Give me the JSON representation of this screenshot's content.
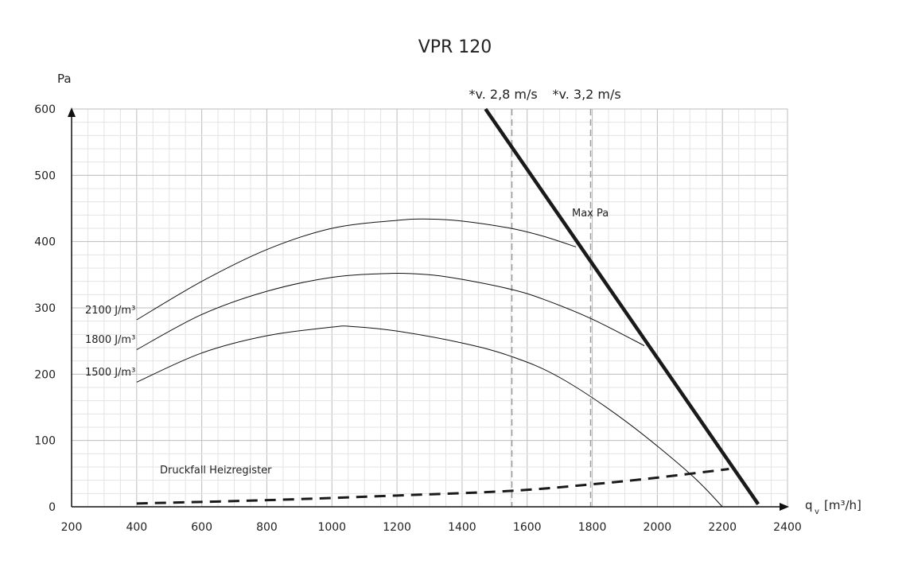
{
  "chart_data": {
    "type": "line",
    "title": "VPR 120",
    "ylabel": "Pa",
    "xlabel_main": "q",
    "xlabel_sub": "v",
    "xlabel_unit": "[m³/h]",
    "xlim": [
      200,
      2400
    ],
    "ylim": [
      0,
      600
    ],
    "x_ticks": [
      200,
      400,
      600,
      800,
      1000,
      1200,
      1400,
      1600,
      1800,
      2000,
      2200,
      2400
    ],
    "y_ticks": [
      0,
      100,
      200,
      300,
      400,
      500,
      600
    ],
    "grid": true,
    "series": [
      {
        "name": "2100 J/m³",
        "x": [
          400,
          600,
          800,
          1000,
          1200,
          1300,
          1400,
          1550,
          1650,
          1750
        ],
        "y": [
          282,
          340,
          388,
          420,
          432,
          434,
          431,
          420,
          408,
          392
        ]
      },
      {
        "name": "1800 J/m³",
        "x": [
          400,
          600,
          800,
          1000,
          1180,
          1300,
          1400,
          1550,
          1650,
          1800,
          1960
        ],
        "y": [
          237,
          290,
          325,
          346,
          352,
          350,
          343,
          328,
          313,
          283,
          243
        ]
      },
      {
        "name": "1500 J/m³",
        "x": [
          400,
          600,
          800,
          1000,
          1060,
          1200,
          1400,
          1550,
          1700,
          1900,
          2100,
          2200
        ],
        "y": [
          188,
          232,
          258,
          271,
          272,
          265,
          247,
          227,
          195,
          130,
          50,
          0
        ]
      },
      {
        "name": "Max Pa",
        "x": [
          1472,
          2310
        ],
        "y": [
          600,
          4
        ]
      },
      {
        "name": "Druckfall Heizregister",
        "x": [
          400,
          800,
          1200,
          1550,
          1800,
          2000,
          2220
        ],
        "y": [
          5,
          10,
          17,
          24,
          34,
          44,
          57
        ]
      }
    ],
    "velocity_lines": [
      {
        "label": "*v. 2,8 m/s",
        "x": 1553
      },
      {
        "label": "*v. 3,2 m/s",
        "x": 1795
      }
    ]
  }
}
